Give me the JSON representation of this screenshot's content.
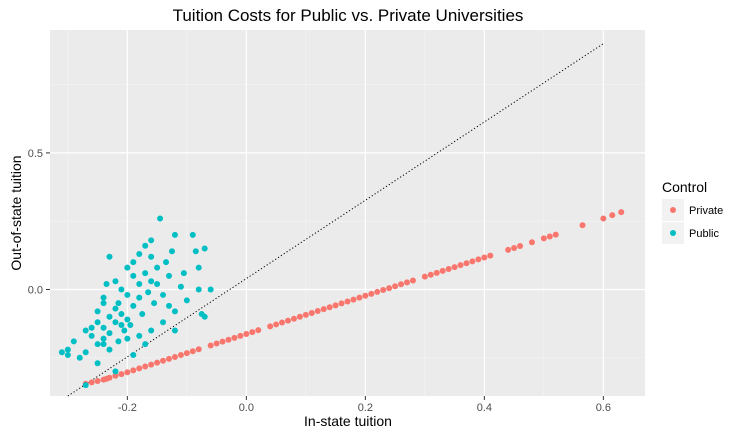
{
  "chart_data": {
    "type": "scatter",
    "title": "Tuition Costs for Public vs. Private Universities",
    "xlabel": "In-state tuition",
    "ylabel": "Out-of-state tuition",
    "xlim": [
      -0.33,
      0.67
    ],
    "ylim": [
      -0.39,
      0.95
    ],
    "x_ticks": [
      -0.2,
      0.0,
      0.2,
      0.4,
      0.6
    ],
    "x_tick_labels": [
      "-0.2",
      "0.0",
      "0.2",
      "0.4",
      "0.6"
    ],
    "y_ticks": [
      0.0,
      0.5
    ],
    "y_tick_labels": [
      "0.0",
      "0.5"
    ],
    "grid": true,
    "legend": {
      "title": "Control",
      "position": "right"
    },
    "reference_line": {
      "style": "dotted",
      "from": [
        -0.3,
        -0.39
      ],
      "to": [
        0.6,
        0.9
      ]
    },
    "series": [
      {
        "name": "Private",
        "color": "#F8766D",
        "points": [
          [
            -0.27,
            -0.345
          ],
          [
            -0.26,
            -0.34
          ],
          [
            -0.25,
            -0.335
          ],
          [
            -0.24,
            -0.33
          ],
          [
            -0.235,
            -0.327
          ],
          [
            -0.23,
            -0.323
          ],
          [
            -0.22,
            -0.316
          ],
          [
            -0.21,
            -0.31
          ],
          [
            -0.2,
            -0.303
          ],
          [
            -0.19,
            -0.296
          ],
          [
            -0.18,
            -0.289
          ],
          [
            -0.17,
            -0.282
          ],
          [
            -0.16,
            -0.275
          ],
          [
            -0.15,
            -0.268
          ],
          [
            -0.14,
            -0.261
          ],
          [
            -0.13,
            -0.254
          ],
          [
            -0.12,
            -0.247
          ],
          [
            -0.11,
            -0.24
          ],
          [
            -0.1,
            -0.233
          ],
          [
            -0.09,
            -0.226
          ],
          [
            -0.08,
            -0.219
          ],
          [
            -0.06,
            -0.205
          ],
          [
            -0.05,
            -0.198
          ],
          [
            -0.04,
            -0.191
          ],
          [
            -0.03,
            -0.184
          ],
          [
            -0.02,
            -0.177
          ],
          [
            -0.01,
            -0.17
          ],
          [
            0.0,
            -0.163
          ],
          [
            0.01,
            -0.156
          ],
          [
            0.02,
            -0.149
          ],
          [
            0.04,
            -0.135
          ],
          [
            0.05,
            -0.128
          ],
          [
            0.06,
            -0.121
          ],
          [
            0.07,
            -0.114
          ],
          [
            0.08,
            -0.107
          ],
          [
            0.09,
            -0.1
          ],
          [
            0.1,
            -0.093
          ],
          [
            0.11,
            -0.086
          ],
          [
            0.12,
            -0.079
          ],
          [
            0.13,
            -0.072
          ],
          [
            0.14,
            -0.065
          ],
          [
            0.15,
            -0.058
          ],
          [
            0.16,
            -0.051
          ],
          [
            0.17,
            -0.044
          ],
          [
            0.18,
            -0.037
          ],
          [
            0.19,
            -0.03
          ],
          [
            0.2,
            -0.023
          ],
          [
            0.21,
            -0.016
          ],
          [
            0.22,
            -0.009
          ],
          [
            0.23,
            -0.002
          ],
          [
            0.24,
            0.005
          ],
          [
            0.25,
            0.012
          ],
          [
            0.26,
            0.019
          ],
          [
            0.27,
            0.026
          ],
          [
            0.28,
            0.033
          ],
          [
            0.3,
            0.047
          ],
          [
            0.31,
            0.054
          ],
          [
            0.32,
            0.061
          ],
          [
            0.33,
            0.068
          ],
          [
            0.34,
            0.075
          ],
          [
            0.35,
            0.082
          ],
          [
            0.36,
            0.089
          ],
          [
            0.37,
            0.096
          ],
          [
            0.38,
            0.103
          ],
          [
            0.39,
            0.11
          ],
          [
            0.4,
            0.117
          ],
          [
            0.41,
            0.124
          ],
          [
            0.44,
            0.145
          ],
          [
            0.45,
            0.152
          ],
          [
            0.46,
            0.159
          ],
          [
            0.48,
            0.173
          ],
          [
            0.5,
            0.187
          ],
          [
            0.51,
            0.194
          ],
          [
            0.52,
            0.201
          ],
          [
            0.565,
            0.235
          ],
          [
            0.6,
            0.26
          ],
          [
            0.615,
            0.272
          ],
          [
            0.63,
            0.283
          ]
        ]
      },
      {
        "name": "Public",
        "color": "#00BFC4",
        "points": [
          [
            -0.31,
            -0.23
          ],
          [
            -0.3,
            -0.24
          ],
          [
            -0.3,
            -0.22
          ],
          [
            -0.29,
            -0.19
          ],
          [
            -0.28,
            -0.25
          ],
          [
            -0.27,
            -0.23
          ],
          [
            -0.27,
            -0.15
          ],
          [
            -0.26,
            -0.14
          ],
          [
            -0.26,
            -0.17
          ],
          [
            -0.25,
            -0.2
          ],
          [
            -0.25,
            -0.12
          ],
          [
            -0.25,
            -0.08
          ],
          [
            -0.24,
            -0.14
          ],
          [
            -0.24,
            -0.18
          ],
          [
            -0.24,
            -0.05
          ],
          [
            -0.24,
            -0.03
          ],
          [
            -0.235,
            0.02
          ],
          [
            -0.23,
            0.12
          ],
          [
            -0.23,
            -0.1
          ],
          [
            -0.23,
            -0.16
          ],
          [
            -0.22,
            -0.07
          ],
          [
            -0.22,
            -0.12
          ],
          [
            -0.22,
            0.03
          ],
          [
            -0.215,
            -0.05
          ],
          [
            -0.21,
            -0.09
          ],
          [
            -0.21,
            0.0
          ],
          [
            -0.2,
            0.08
          ],
          [
            -0.2,
            -0.02
          ],
          [
            -0.2,
            -0.11
          ],
          [
            -0.19,
            -0.06
          ],
          [
            -0.19,
            0.05
          ],
          [
            -0.19,
            0.1
          ],
          [
            -0.18,
            0.13
          ],
          [
            -0.18,
            0.02
          ],
          [
            -0.18,
            -0.03
          ],
          [
            -0.175,
            -0.09
          ],
          [
            -0.17,
            0.16
          ],
          [
            -0.17,
            0.06
          ],
          [
            -0.165,
            -0.01
          ],
          [
            -0.16,
            0.18
          ],
          [
            -0.16,
            0.12
          ],
          [
            -0.16,
            0.03
          ],
          [
            -0.155,
            -0.05
          ],
          [
            -0.15,
            0.08
          ],
          [
            -0.15,
            0.02
          ],
          [
            -0.145,
            0.26
          ],
          [
            -0.14,
            -0.02
          ],
          [
            -0.135,
            0.1
          ],
          [
            -0.13,
            0.05
          ],
          [
            -0.13,
            -0.06
          ],
          [
            -0.125,
            0.14
          ],
          [
            -0.12,
            0.2
          ],
          [
            -0.12,
            -0.08
          ],
          [
            -0.11,
            0.01
          ],
          [
            -0.105,
            0.06
          ],
          [
            -0.1,
            -0.04
          ],
          [
            -0.09,
            0.2
          ],
          [
            -0.085,
            0.14
          ],
          [
            -0.08,
            0.08
          ],
          [
            -0.08,
            0.0
          ],
          [
            -0.075,
            -0.09
          ],
          [
            -0.07,
            0.15
          ],
          [
            -0.06,
            0.0
          ],
          [
            -0.07,
            -0.1
          ],
          [
            -0.12,
            -0.15
          ],
          [
            -0.14,
            -0.12
          ],
          [
            -0.22,
            -0.3
          ],
          [
            -0.27,
            -0.35
          ],
          [
            -0.24,
            -0.2
          ],
          [
            -0.21,
            -0.13
          ],
          [
            -0.2,
            -0.18
          ],
          [
            -0.18,
            -0.17
          ],
          [
            -0.17,
            -0.2
          ],
          [
            -0.16,
            -0.15
          ],
          [
            -0.23,
            -0.22
          ],
          [
            -0.25,
            -0.27
          ],
          [
            -0.19,
            -0.24
          ],
          [
            -0.215,
            -0.19
          ],
          [
            -0.205,
            -0.15
          ],
          [
            -0.195,
            -0.13
          ]
        ]
      }
    ]
  }
}
